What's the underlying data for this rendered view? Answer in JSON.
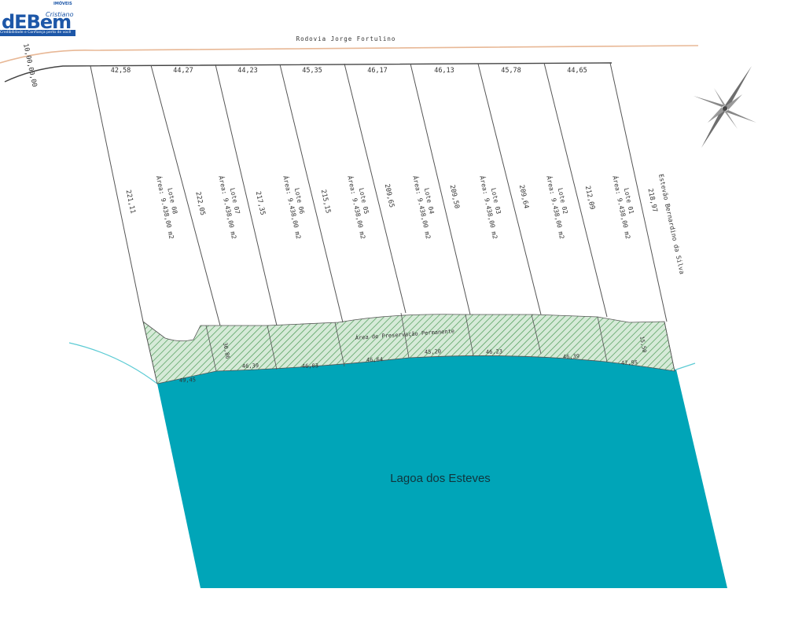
{
  "brand": {
    "name": "dEBem",
    "owner": "Cristiano",
    "segment": "IMÓVEIS",
    "slogan": "Credibilidade e Confiança perto de você"
  },
  "road": {
    "name": "Rodovia Jorge Fortulino",
    "station": "10,00,00,00"
  },
  "lake": {
    "name": "Lagoa dos Esteves"
  },
  "app_zone": {
    "label": "Área de Preservação Permanente"
  },
  "neighbor": {
    "label": "Estevão Bernardino da Silva"
  },
  "front_measures": [
    "42,58",
    "44,27",
    "44,23",
    "45,35",
    "46,17",
    "46,13",
    "45,78",
    "44,65"
  ],
  "side_measures": [
    "221,11",
    "222,05",
    "217,35",
    "215,15",
    "209,65",
    "209,50",
    "209,64",
    "212,09",
    "218,97"
  ],
  "lots": [
    {
      "name": "Lote 08",
      "area": "Área: 9.438,00 m2"
    },
    {
      "name": "Lote 07",
      "area": "Área: 9.438,00 m2"
    },
    {
      "name": "Lote 06",
      "area": "Área: 9.438,00 m2"
    },
    {
      "name": "Lote 05",
      "area": "Área: 9.438,00 m2"
    },
    {
      "name": "Lote 04",
      "area": "Área: 9.438,00 m2"
    },
    {
      "name": "Lote 03",
      "area": "Área: 9.438,00 m2"
    },
    {
      "name": "Lote 02",
      "area": "Área: 9.438,00 m2"
    },
    {
      "name": "Lote 01",
      "area": "Área: 9.438,00 m2"
    }
  ],
  "app_bottom_measures": [
    "49,45",
    "46,39",
    "46,03",
    "46,64",
    "45,20",
    "46,23",
    "46,39",
    "47,95"
  ],
  "app_side_measures": [
    "30,86",
    "15,50"
  ],
  "colors": {
    "lake": "#00a5b8",
    "app_fill": "#d6ead8",
    "app_hatch": "#4a9a55",
    "road_edge": "#e8b896",
    "lines": "#555555",
    "brand": "#1d57a8"
  }
}
